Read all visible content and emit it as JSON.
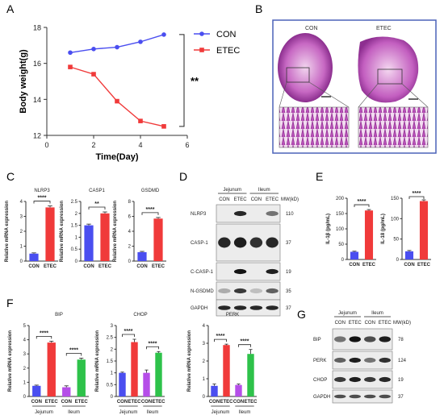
{
  "panels": {
    "A": "A",
    "B": "B",
    "C": "C",
    "D": "D",
    "E": "E",
    "F": "F",
    "G": "G"
  },
  "chart_data": [
    {
      "panel": "A",
      "type": "line",
      "x": [
        1,
        2,
        3,
        4,
        5
      ],
      "series": [
        {
          "name": "CON",
          "color": "#4a4ef0",
          "marker": "circle",
          "values": [
            16.6,
            16.8,
            16.9,
            17.2,
            17.6
          ]
        },
        {
          "name": "ETEC",
          "color": "#f03a3a",
          "marker": "square",
          "values": [
            15.8,
            15.4,
            13.9,
            12.8,
            12.5
          ]
        }
      ],
      "xlabel": "Time(Day)",
      "ylabel": "Body weight(g)",
      "xticks": [
        0,
        2,
        4,
        6
      ],
      "yticks": [
        12,
        14,
        16,
        18
      ],
      "xlim": [
        0,
        6
      ],
      "ylim": [
        12,
        18
      ],
      "significance": "**",
      "legend": "top-right"
    },
    {
      "panel": "C",
      "type": "bar",
      "title": "NLRP3",
      "categories": [
        "CON",
        "ETEC"
      ],
      "values": [
        0.5,
        3.6
      ],
      "errors": [
        0.05,
        0.1
      ],
      "colors": [
        "#4a4ef0",
        "#f03a3a"
      ],
      "ylabel": "Relative mRNA expression",
      "yticks": [
        0,
        1,
        2,
        3,
        4
      ],
      "ylim": [
        0,
        4
      ],
      "significance": "****"
    },
    {
      "panel": "C",
      "type": "bar",
      "title": "CASP1",
      "categories": [
        "CON",
        "ETEC"
      ],
      "values": [
        1.5,
        2.0
      ],
      "errors": [
        0.05,
        0.06
      ],
      "colors": [
        "#4a4ef0",
        "#f03a3a"
      ],
      "ylabel": "Relative mRNA expression",
      "yticks": [
        0.0,
        0.5,
        1.0,
        1.5,
        2.0,
        2.5
      ],
      "ylim": [
        0,
        2.5
      ],
      "significance": "**"
    },
    {
      "panel": "C",
      "type": "bar",
      "title": "GSDMD",
      "categories": [
        "CON",
        "ETEC"
      ],
      "values": [
        1.2,
        5.7
      ],
      "errors": [
        0.1,
        0.15
      ],
      "colors": [
        "#4a4ef0",
        "#f03a3a"
      ],
      "ylabel": "Relative mRNA expression",
      "yticks": [
        0,
        2,
        4,
        6,
        8
      ],
      "ylim": [
        0,
        8
      ],
      "significance": "****"
    },
    {
      "panel": "E",
      "type": "bar",
      "categories": [
        "CON",
        "ETEC"
      ],
      "values": [
        25,
        160
      ],
      "errors": [
        2,
        3
      ],
      "colors": [
        "#4a4ef0",
        "#f03a3a"
      ],
      "ylabel": "IL-1β  (pg/mL)",
      "yticks": [
        0,
        50,
        100,
        150,
        200
      ],
      "ylim": [
        0,
        200
      ],
      "significance": "****"
    },
    {
      "panel": "E",
      "type": "bar",
      "categories": [
        "CON",
        "ETEC"
      ],
      "values": [
        20,
        143
      ],
      "errors": [
        2,
        3
      ],
      "colors": [
        "#4a4ef0",
        "#f03a3a"
      ],
      "ylabel": "IL-18  (pg/mL)",
      "yticks": [
        0,
        50,
        100,
        150
      ],
      "ylim": [
        0,
        150
      ],
      "significance": "****"
    },
    {
      "panel": "F",
      "type": "bar",
      "title": "BIP",
      "categories": [
        "CON",
        "ETEC",
        "CON",
        "ETEC"
      ],
      "groups": [
        "Jejunum",
        "Ileum"
      ],
      "values": [
        0.75,
        3.8,
        0.65,
        2.6
      ],
      "errors": [
        0.05,
        0.1,
        0.1,
        0.1
      ],
      "colors": [
        "#4a4ef0",
        "#f03a3a",
        "#b54ee8",
        "#2ec24a"
      ],
      "ylabel": "Relative mRNA expression",
      "yticks": [
        0,
        1,
        2,
        3,
        4,
        5
      ],
      "ylim": [
        0,
        5
      ],
      "significance": [
        "****",
        "****"
      ]
    },
    {
      "panel": "F",
      "type": "bar",
      "title": "CHOP",
      "categories": [
        "CON",
        "ETEC",
        "CON",
        "ETEC"
      ],
      "groups": [
        "Jejunum",
        "Ileum"
      ],
      "values": [
        1.0,
        2.3,
        1.0,
        1.85
      ],
      "errors": [
        0.03,
        0.12,
        0.12,
        0.05
      ],
      "colors": [
        "#4a4ef0",
        "#f03a3a",
        "#b54ee8",
        "#2ec24a"
      ],
      "ylabel": "Relative mRNA expression",
      "yticks": [
        0.0,
        0.5,
        1.0,
        1.5,
        2.0,
        2.5,
        3.0
      ],
      "ylim": [
        0,
        3
      ],
      "significance": [
        "****",
        "****"
      ]
    },
    {
      "panel": "F",
      "type": "bar",
      "title": "PERK",
      "categories": [
        "CON",
        "ETEC",
        "CON",
        "ETEC"
      ],
      "groups": [
        "Jejunum",
        "Ileum"
      ],
      "values": [
        0.6,
        2.9,
        0.65,
        2.4
      ],
      "errors": [
        0.1,
        0.05,
        0.05,
        0.25
      ],
      "colors": [
        "#4a4ef0",
        "#f03a3a",
        "#b54ee8",
        "#2ec24a"
      ],
      "ylabel": "Relative mRNA expression",
      "yticks": [
        0,
        1,
        2,
        3,
        4
      ],
      "ylim": [
        0,
        4
      ],
      "significance": [
        "****",
        "****"
      ]
    }
  ],
  "histology": {
    "labels": [
      "CON",
      "ETEC"
    ]
  },
  "blot_D": {
    "groups": [
      "Jejunum",
      "Ileum"
    ],
    "lanes": [
      "CON",
      "ETEC",
      "CON",
      "ETEC"
    ],
    "mw_header": "MW(kD)",
    "rows": [
      {
        "name": "NLRP3",
        "mw": "110"
      },
      {
        "name": "CASP-1",
        "mw": "37"
      },
      {
        "name": "C-CASP-1",
        "mw": "19"
      },
      {
        "name": "N-GSDMD",
        "mw": "35"
      },
      {
        "name": "GAPDH",
        "mw": "37"
      }
    ]
  },
  "blot_G": {
    "groups": [
      "Jejunum",
      "Ileum"
    ],
    "lanes": [
      "CON",
      "ETEC",
      "CON",
      "ETEC"
    ],
    "mw_header": "MW(kD)",
    "rows": [
      {
        "name": "BIP",
        "mw": "78"
      },
      {
        "name": "PERK",
        "mw": "124"
      },
      {
        "name": "CHOP",
        "mw": "19"
      },
      {
        "name": "GAPDH",
        "mw": "37"
      }
    ]
  }
}
